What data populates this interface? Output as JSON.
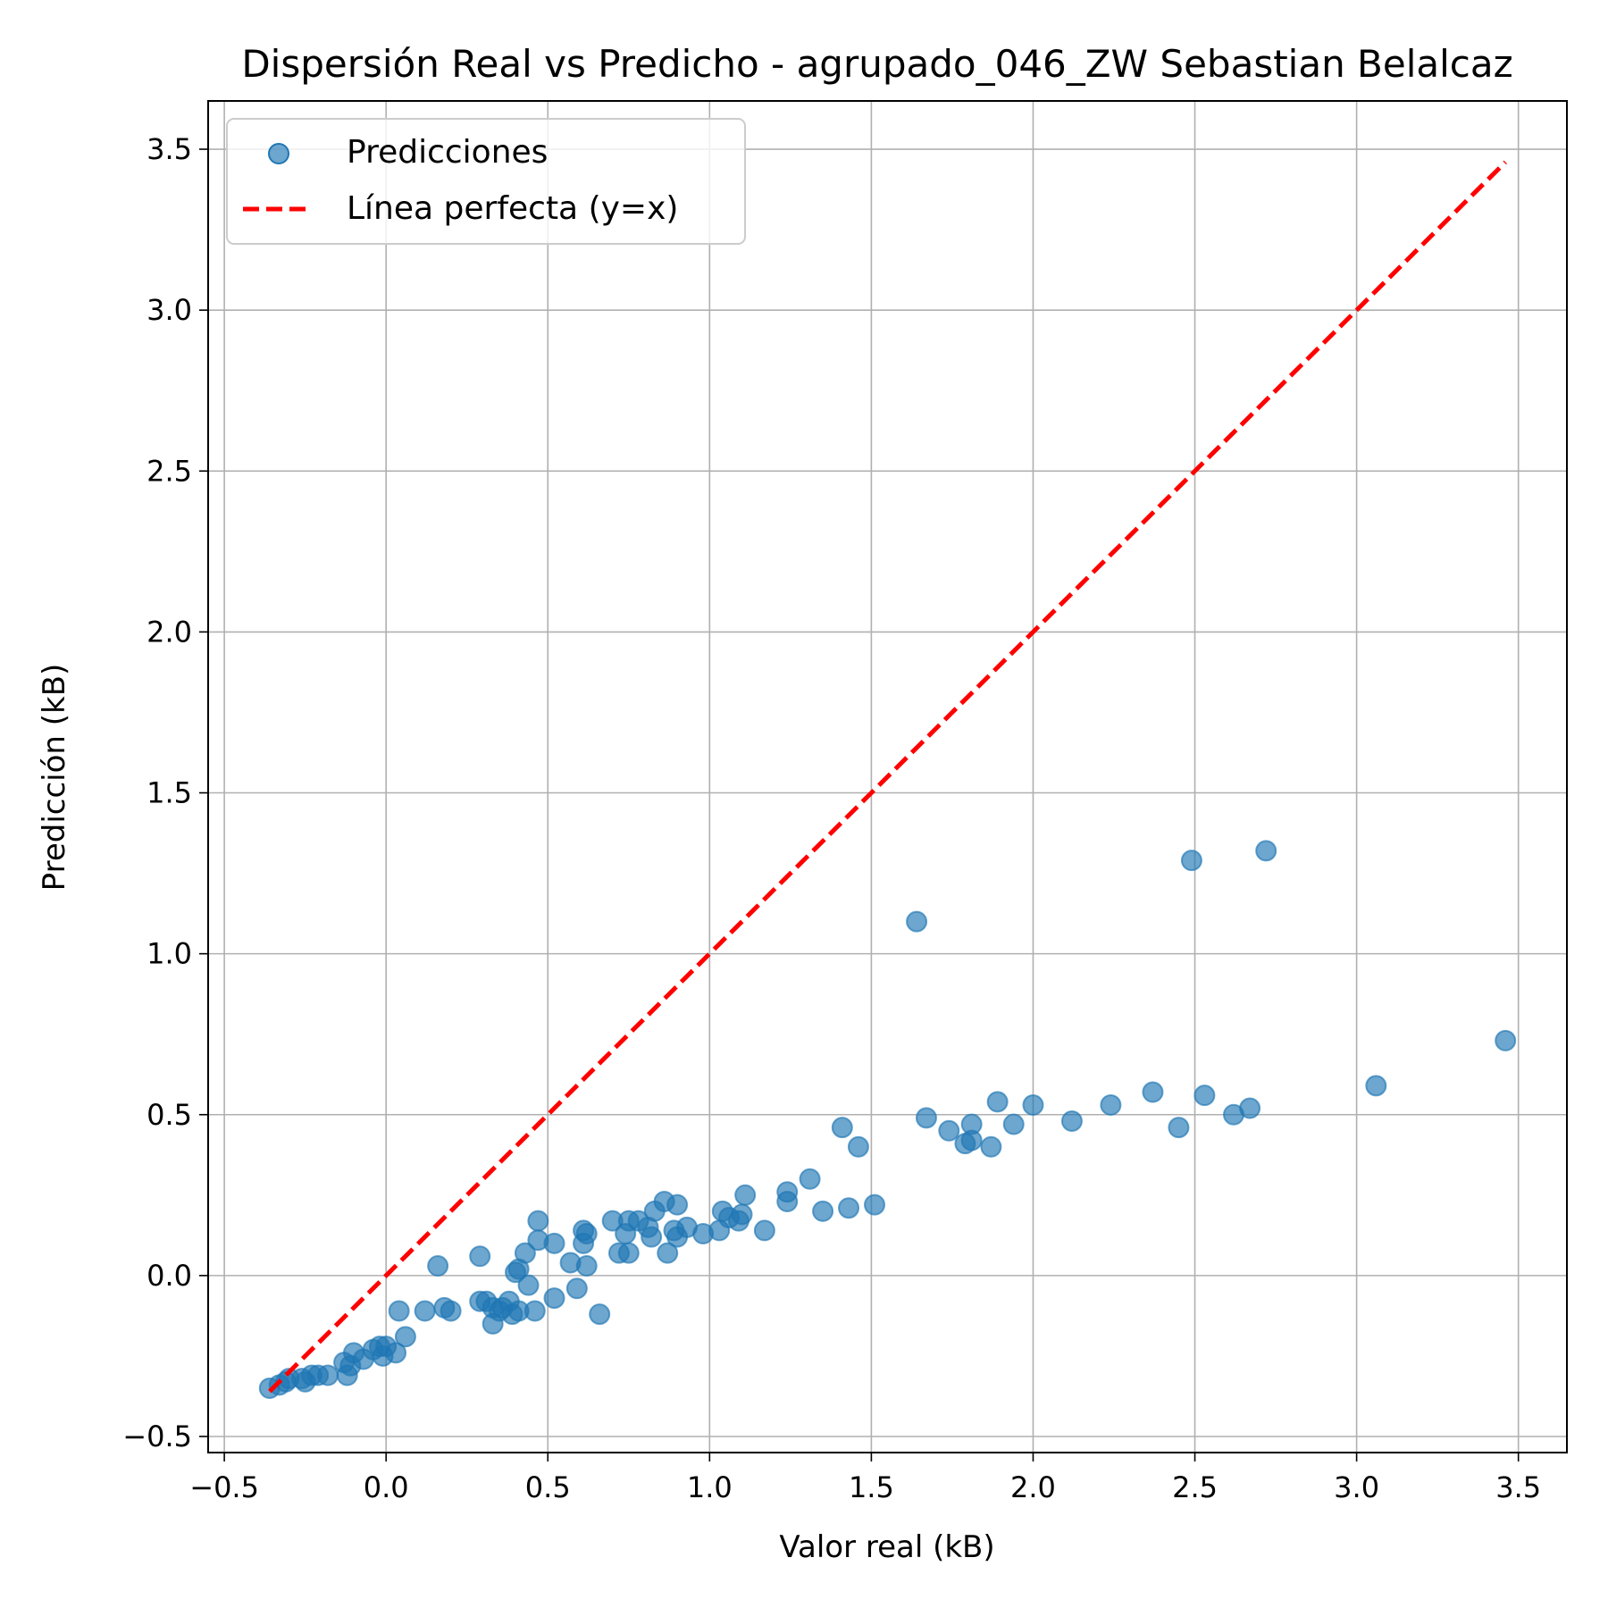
{
  "chart_data": {
    "type": "scatter",
    "title": "Dispersión Real vs Predicho - agrupado_046_ZW Sebastian Belalcaz",
    "xlabel": "Valor real (kB)",
    "ylabel": "Predicción (kB)",
    "xlim": [
      -0.55,
      3.65
    ],
    "ylim": [
      -0.55,
      3.65
    ],
    "xticks": [
      -0.5,
      0.0,
      0.5,
      1.0,
      1.5,
      2.0,
      2.5,
      3.0,
      3.5
    ],
    "yticks": [
      -0.5,
      0.0,
      0.5,
      1.0,
      1.5,
      2.0,
      2.5,
      3.0,
      3.5
    ],
    "xtick_labels": [
      "−0.5",
      "0.0",
      "0.5",
      "1.0",
      "1.5",
      "2.0",
      "2.5",
      "3.0",
      "3.5"
    ],
    "ytick_labels": [
      "−0.5",
      "0.0",
      "0.5",
      "1.0",
      "1.5",
      "2.0",
      "2.5",
      "3.0",
      "3.5"
    ],
    "grid": true,
    "legend_position": "top-left",
    "colors": {
      "points": "#1f77b4",
      "perfect_line": "#ff0000"
    },
    "series": [
      {
        "name": "Predicciones",
        "kind": "scatter",
        "points": [
          [
            -0.36,
            -0.35
          ],
          [
            -0.33,
            -0.34
          ],
          [
            -0.31,
            -0.33
          ],
          [
            -0.3,
            -0.32
          ],
          [
            -0.26,
            -0.32
          ],
          [
            -0.25,
            -0.33
          ],
          [
            -0.23,
            -0.31
          ],
          [
            -0.21,
            -0.31
          ],
          [
            -0.18,
            -0.31
          ],
          [
            -0.13,
            -0.27
          ],
          [
            -0.12,
            -0.31
          ],
          [
            -0.11,
            -0.28
          ],
          [
            -0.1,
            -0.24
          ],
          [
            -0.07,
            -0.26
          ],
          [
            -0.04,
            -0.23
          ],
          [
            -0.02,
            -0.22
          ],
          [
            -0.01,
            -0.25
          ],
          [
            0.0,
            -0.22
          ],
          [
            0.03,
            -0.24
          ],
          [
            0.06,
            -0.19
          ],
          [
            0.04,
            -0.11
          ],
          [
            0.12,
            -0.11
          ],
          [
            0.16,
            0.03
          ],
          [
            0.18,
            -0.1
          ],
          [
            0.2,
            -0.11
          ],
          [
            0.29,
            -0.08
          ],
          [
            0.29,
            0.06
          ],
          [
            0.31,
            -0.08
          ],
          [
            0.33,
            -0.1
          ],
          [
            0.33,
            -0.15
          ],
          [
            0.35,
            -0.11
          ],
          [
            0.36,
            -0.1
          ],
          [
            0.38,
            -0.08
          ],
          [
            0.39,
            -0.12
          ],
          [
            0.4,
            0.01
          ],
          [
            0.41,
            0.02
          ],
          [
            0.41,
            -0.11
          ],
          [
            0.43,
            0.07
          ],
          [
            0.44,
            -0.03
          ],
          [
            0.46,
            -0.11
          ],
          [
            0.47,
            0.17
          ],
          [
            0.47,
            0.11
          ],
          [
            0.52,
            -0.07
          ],
          [
            0.52,
            0.1
          ],
          [
            0.57,
            0.04
          ],
          [
            0.59,
            -0.04
          ],
          [
            0.61,
            0.14
          ],
          [
            0.61,
            0.1
          ],
          [
            0.62,
            0.03
          ],
          [
            0.62,
            0.13
          ],
          [
            0.66,
            -0.12
          ],
          [
            0.7,
            0.17
          ],
          [
            0.72,
            0.07
          ],
          [
            0.74,
            0.13
          ],
          [
            0.75,
            0.07
          ],
          [
            0.75,
            0.17
          ],
          [
            0.78,
            0.17
          ],
          [
            0.81,
            0.15
          ],
          [
            0.82,
            0.12
          ],
          [
            0.83,
            0.2
          ],
          [
            0.86,
            0.23
          ],
          [
            0.87,
            0.07
          ],
          [
            0.89,
            0.14
          ],
          [
            0.9,
            0.22
          ],
          [
            0.9,
            0.12
          ],
          [
            0.93,
            0.15
          ],
          [
            0.98,
            0.13
          ],
          [
            1.03,
            0.14
          ],
          [
            1.04,
            0.2
          ],
          [
            1.06,
            0.18
          ],
          [
            1.09,
            0.17
          ],
          [
            1.1,
            0.19
          ],
          [
            1.11,
            0.25
          ],
          [
            1.17,
            0.14
          ],
          [
            1.24,
            0.23
          ],
          [
            1.24,
            0.26
          ],
          [
            1.31,
            0.3
          ],
          [
            1.35,
            0.2
          ],
          [
            1.41,
            0.46
          ],
          [
            1.43,
            0.21
          ],
          [
            1.46,
            0.4
          ],
          [
            1.51,
            0.22
          ],
          [
            1.64,
            1.1
          ],
          [
            1.67,
            0.49
          ],
          [
            1.74,
            0.45
          ],
          [
            1.79,
            0.41
          ],
          [
            1.81,
            0.47
          ],
          [
            1.81,
            0.42
          ],
          [
            1.87,
            0.4
          ],
          [
            1.89,
            0.54
          ],
          [
            1.94,
            0.47
          ],
          [
            2.0,
            0.53
          ],
          [
            2.12,
            0.48
          ],
          [
            2.24,
            0.53
          ],
          [
            2.37,
            0.57
          ],
          [
            2.45,
            0.46
          ],
          [
            2.49,
            1.29
          ],
          [
            2.53,
            0.56
          ],
          [
            2.62,
            0.5
          ],
          [
            2.67,
            0.52
          ],
          [
            2.72,
            1.32
          ],
          [
            3.06,
            0.59
          ],
          [
            3.46,
            0.73
          ]
        ]
      },
      {
        "name": "Línea perfecta (y=x)",
        "kind": "line",
        "points": [
          [
            -0.36,
            -0.36
          ],
          [
            3.46,
            3.46
          ]
        ]
      }
    ]
  }
}
